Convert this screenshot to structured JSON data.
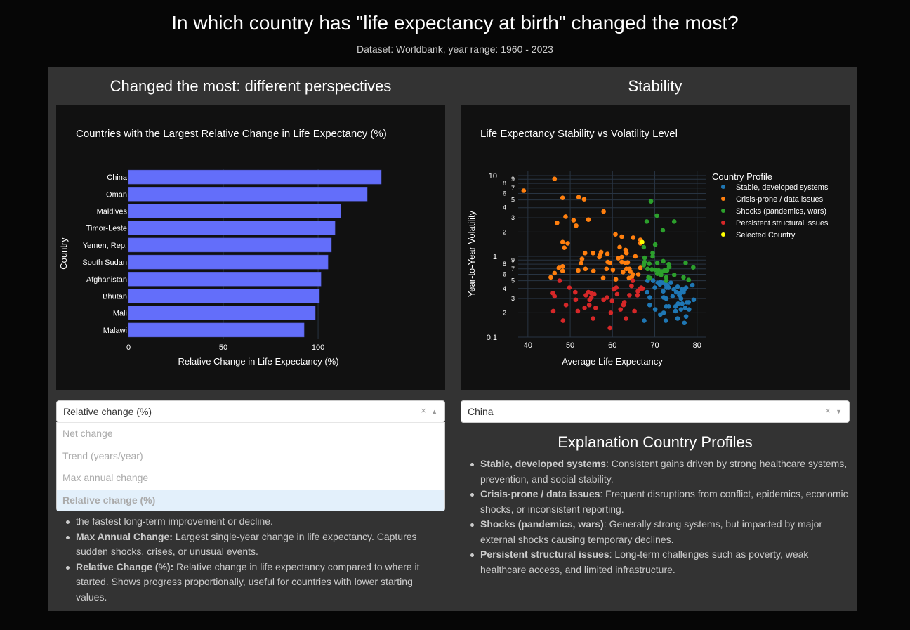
{
  "header": {
    "title": "In which country has \"life expectancy at birth\" changed the most?",
    "subtitle": "Dataset: Worldbank, year range: 1960 - 2023"
  },
  "left": {
    "title": "Changed the most: different perspectives",
    "dropdown": {
      "value": "Relative change (%)",
      "clear": "×",
      "arrow": "▲",
      "options": [
        "Net change",
        "Trend (years/year)",
        "Max annual change",
        "Relative change (%)"
      ],
      "selected": 3
    },
    "list": [
      {
        "bold": "",
        "text": "the fastest long-term improvement or decline."
      },
      {
        "bold": "Max Annual Change:",
        "text": " Largest single-year change in life expectancy. Captures sudden shocks, crises, or unusual events."
      },
      {
        "bold": "Relative Change (%):",
        "text": " Relative change in life expectancy compared to where it started. Shows progress proportionally, useful for countries with lower starting values."
      }
    ]
  },
  "right": {
    "title": "Stability",
    "dropdown": {
      "value": "China",
      "clear": "×",
      "arrow": "▼"
    },
    "explain_title": "Explanation Country Profiles",
    "list": [
      {
        "bold": "Stable, developed systems",
        "text": ": Consistent gains driven by strong healthcare systems, prevention, and social stability."
      },
      {
        "bold": "Crisis-prone / data issues",
        "text": ": Frequent disruptions from conflict, epidemics, economic shocks, or inconsistent reporting."
      },
      {
        "bold": "Shocks (pandemics, wars)",
        "text": ": Generally strong systems, but impacted by major external shocks causing temporary declines."
      },
      {
        "bold": "Persistent structural issues",
        "text": ": Long-term challenges such as poverty, weak healthcare access, and limited infrastructure."
      }
    ]
  },
  "chart_data": [
    {
      "type": "bar",
      "orientation": "horizontal",
      "title": "Countries with the Largest Relative Change in Life Expectancy (%)",
      "xlabel": "Relative Change in Life Expectancy (%)",
      "ylabel": "Country",
      "xlim": [
        0,
        137
      ],
      "xticks": [
        0,
        50,
        100
      ],
      "categories": [
        "China",
        "Oman",
        "Maldives",
        "Timor-Leste",
        "Yemen, Rep.",
        "South Sudan",
        "Afghanistan",
        "Bhutan",
        "Mali",
        "Malawi"
      ],
      "values": [
        133.3,
        125.9,
        111.9,
        108.9,
        107.0,
        105.2,
        101.5,
        100.7,
        98.5,
        92.6
      ],
      "color": "#636efa",
      "grid": true
    },
    {
      "type": "scatter",
      "title": "Life Expectancy Stability vs Volatility Level",
      "xlabel": "Average Life Expectancy",
      "ylabel": "Year-to-Year Volatility",
      "xlim": [
        37.7,
        82.2
      ],
      "ylim": [
        0.1,
        11.5
      ],
      "yscale": "log",
      "xticks": [
        40,
        50,
        60,
        70,
        80
      ],
      "yticks": [
        {
          "v": 0.1,
          "l": "0.1"
        },
        {
          "v": 0.2,
          "l": "2"
        },
        {
          "v": 0.3,
          "l": "3"
        },
        {
          "v": 0.4,
          "l": "4"
        },
        {
          "v": 0.5,
          "l": "5"
        },
        {
          "v": 0.6,
          "l": "6"
        },
        {
          "v": 0.7,
          "l": "7"
        },
        {
          "v": 0.8,
          "l": "8"
        },
        {
          "v": 0.9,
          "l": "9"
        },
        {
          "v": 1,
          "l": "1"
        },
        {
          "v": 2,
          "l": "2"
        },
        {
          "v": 3,
          "l": "3"
        },
        {
          "v": 4,
          "l": "4"
        },
        {
          "v": 5,
          "l": "5"
        },
        {
          "v": 6,
          "l": "6"
        },
        {
          "v": 7,
          "l": "7"
        },
        {
          "v": 8,
          "l": "8"
        },
        {
          "v": 9,
          "l": "9"
        },
        {
          "v": 10,
          "l": "10"
        }
      ],
      "legend_title": "Country Profile",
      "legend_position": "right",
      "series": [
        {
          "name": "Stable, developed systems",
          "color": "#1f77b4",
          "points": [
            [
              68.3,
              0.5
            ],
            [
              69.6,
              0.5
            ],
            [
              70,
              0.41
            ],
            [
              70.7,
              0.47
            ],
            [
              71.4,
              0.48
            ],
            [
              71.9,
              0.47
            ],
            [
              72.6,
              0.45
            ],
            [
              72.8,
              0.41
            ],
            [
              73.8,
              0.47
            ],
            [
              73.3,
              0.41
            ],
            [
              72,
              0.37
            ],
            [
              68.2,
              0.36
            ],
            [
              68.8,
              0.31
            ],
            [
              72.1,
              0.31
            ],
            [
              72.7,
              0.3
            ],
            [
              74.2,
              0.32
            ],
            [
              74.5,
              0.39
            ],
            [
              75.1,
              0.36
            ],
            [
              75.4,
              0.42
            ],
            [
              76.4,
              0.39
            ],
            [
              77,
              0.39
            ],
            [
              77.4,
              0.41
            ],
            [
              78.9,
              0.44
            ],
            [
              76,
              0.35
            ],
            [
              76.2,
              0.3
            ],
            [
              79.2,
              0.29
            ],
            [
              78,
              0.27
            ],
            [
              76.5,
              0.26
            ],
            [
              75.5,
              0.26
            ],
            [
              74.9,
              0.24
            ],
            [
              76.2,
              0.22
            ],
            [
              77.2,
              0.23
            ],
            [
              78.1,
              0.22
            ],
            [
              72.7,
              0.24
            ],
            [
              73.3,
              0.24
            ],
            [
              68.8,
              0.25
            ],
            [
              70.1,
              0.22
            ],
            [
              71.3,
              0.19
            ],
            [
              72.1,
              0.2
            ],
            [
              74.9,
              0.21
            ],
            [
              75.4,
              0.17
            ],
            [
              77.4,
              0.18
            ],
            [
              77,
              0.15
            ],
            [
              72.6,
              0.16
            ],
            [
              67.5,
              0.16
            ],
            [
              71.2,
              0.45
            ],
            [
              73,
              0.43
            ],
            [
              75.8,
              0.33
            ],
            [
              76.8,
              0.36
            ],
            [
              77.6,
              0.27
            ]
          ]
        },
        {
          "name": "Crisis-prone / data issues",
          "color": "#ff7f0e",
          "points": [
            [
              46.3,
              9.1
            ],
            [
              39,
              6.5
            ],
            [
              48.2,
              5.3
            ],
            [
              52,
              5.4
            ],
            [
              53.3,
              5.1
            ],
            [
              57.9,
              3.6
            ],
            [
              48.9,
              3.1
            ],
            [
              46.9,
              2.6
            ],
            [
              50.8,
              2.8
            ],
            [
              51.4,
              2.4
            ],
            [
              54.3,
              2.85
            ],
            [
              60.7,
              1.87
            ],
            [
              62.2,
              1.75
            ],
            [
              64.9,
              1.7
            ],
            [
              66.6,
              1.6
            ],
            [
              66.6,
              1.45
            ],
            [
              48.2,
              1.5
            ],
            [
              49.4,
              1.45
            ],
            [
              48.6,
              1.28
            ],
            [
              61.7,
              1.3
            ],
            [
              63.1,
              1.2
            ],
            [
              63.3,
              1.1
            ],
            [
              53.5,
              1.1
            ],
            [
              55.4,
              1.1
            ],
            [
              57.3,
              1.13
            ],
            [
              57.1,
              1.05
            ],
            [
              56.9,
              0.98
            ],
            [
              58.8,
              1.07
            ],
            [
              52.8,
              0.93
            ],
            [
              52.6,
              0.82
            ],
            [
              61.4,
              0.95
            ],
            [
              62.2,
              0.98
            ],
            [
              65.4,
              1.0
            ],
            [
              58.9,
              0.85
            ],
            [
              59.4,
              0.83
            ],
            [
              62.2,
              0.85
            ],
            [
              63.0,
              0.83
            ],
            [
              63.6,
              0.84
            ],
            [
              48.2,
              0.75
            ],
            [
              47.3,
              0.72
            ],
            [
              48.2,
              0.66
            ],
            [
              46.3,
              0.62
            ],
            [
              45.4,
              0.55
            ],
            [
              51.9,
              0.67
            ],
            [
              53.6,
              0.7
            ],
            [
              55.5,
              0.66
            ],
            [
              58.6,
              0.7
            ],
            [
              60.1,
              0.68
            ],
            [
              57.8,
              0.54
            ],
            [
              60.8,
              0.52
            ],
            [
              63.3,
              0.7
            ],
            [
              64.0,
              0.7
            ],
            [
              64.2,
              0.65
            ],
            [
              64.8,
              0.6
            ],
            [
              64.6,
              0.56
            ],
            [
              63.9,
              0.54
            ],
            [
              66.1,
              0.6
            ],
            [
              66.6,
              0.72
            ],
            [
              62.5,
              0.64
            ]
          ]
        },
        {
          "name": "Shocks (pandemics, wars)",
          "color": "#2ca02c",
          "points": [
            [
              69.1,
              4.8
            ],
            [
              70.5,
              3.2
            ],
            [
              74.6,
              2.7
            ],
            [
              68.1,
              2.7
            ],
            [
              71.9,
              2.1
            ],
            [
              70.1,
              1.4
            ],
            [
              67.4,
              1.3
            ],
            [
              69.5,
              1.1
            ],
            [
              69.5,
              1.0
            ],
            [
              67.6,
              0.96
            ],
            [
              67.6,
              0.85
            ],
            [
              67.4,
              0.78
            ],
            [
              68.7,
              0.81
            ],
            [
              70.6,
              0.83
            ],
            [
              72.0,
              0.87
            ],
            [
              73.3,
              0.8
            ],
            [
              73.4,
              0.74
            ],
            [
              77.3,
              0.83
            ],
            [
              79.1,
              0.73
            ],
            [
              68.3,
              0.7
            ],
            [
              69.3,
              0.69
            ],
            [
              70.1,
              0.68
            ],
            [
              70.9,
              0.67
            ],
            [
              71.7,
              0.65
            ],
            [
              72.3,
              0.67
            ],
            [
              72.9,
              0.67
            ],
            [
              70.6,
              0.61
            ],
            [
              71.5,
              0.59
            ],
            [
              74.6,
              0.59
            ],
            [
              68.5,
              0.55
            ],
            [
              68.9,
              0.54
            ],
            [
              72.7,
              0.55
            ],
            [
              72.7,
              0.5
            ],
            [
              76.8,
              0.55
            ],
            [
              78,
              0.51
            ]
          ]
        },
        {
          "name": "Persistent structural issues",
          "color": "#d62728",
          "points": [
            [
              47.5,
              0.5
            ],
            [
              49.8,
              0.41
            ],
            [
              45.9,
              0.35
            ],
            [
              46.3,
              0.32
            ],
            [
              51.2,
              0.36
            ],
            [
              53.7,
              0.33
            ],
            [
              54.3,
              0.36
            ],
            [
              55,
              0.35
            ],
            [
              55.7,
              0.34
            ],
            [
              55,
              0.31
            ],
            [
              54.6,
              0.29
            ],
            [
              51.3,
              0.29
            ],
            [
              49,
              0.25
            ],
            [
              46,
              0.21
            ],
            [
              51.8,
              0.21
            ],
            [
              53.4,
              0.23
            ],
            [
              54.5,
              0.25
            ],
            [
              56,
              0.23
            ],
            [
              55.4,
              0.17
            ],
            [
              48.3,
              0.16
            ],
            [
              57.9,
              0.29
            ],
            [
              58.7,
              0.31
            ],
            [
              59.9,
              0.28
            ],
            [
              59.6,
              0.2
            ],
            [
              59.4,
              0.13
            ],
            [
              60.3,
              0.39
            ],
            [
              60.9,
              0.41
            ],
            [
              61.1,
              0.34
            ],
            [
              61.9,
              0.22
            ],
            [
              62.6,
              0.25
            ],
            [
              62.8,
              0.27
            ],
            [
              63.2,
              0.17
            ],
            [
              64,
              0.33
            ],
            [
              64.5,
              0.43
            ],
            [
              64.8,
              0.5
            ],
            [
              65.2,
              0.21
            ],
            [
              65.9,
              0.33
            ],
            [
              66,
              0.37
            ],
            [
              66.4,
              0.39
            ],
            [
              66.8,
              0.41
            ],
            [
              67.1,
              0.4
            ]
          ]
        },
        {
          "name": "Selected Country",
          "color": "#ffff00",
          "points": [
            [
              67.0,
              1.5
            ]
          ]
        }
      ]
    }
  ]
}
